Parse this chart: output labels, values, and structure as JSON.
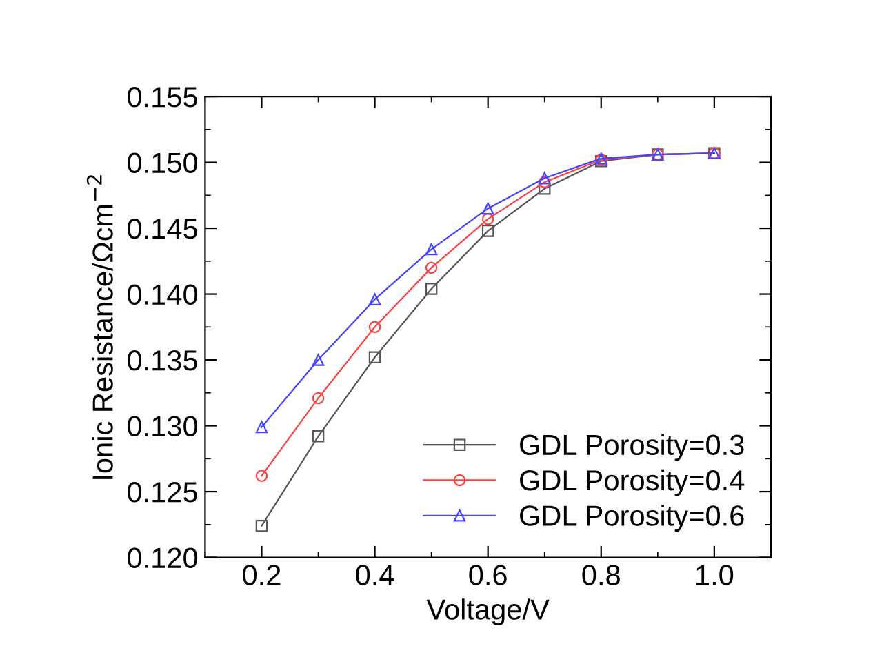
{
  "chart_data": {
    "type": "line",
    "xlabel": "Voltage/V",
    "ylabel": "Ionic Resistance/Ωcm$^{−2}$",
    "x": [
      0.2,
      0.3,
      0.4,
      0.5,
      0.6,
      0.7,
      0.8,
      0.9,
      1.0
    ],
    "series": [
      {
        "name": "GDL Porosity=0.3",
        "color": "#555555",
        "marker": "square",
        "values": [
          0.1224,
          0.1292,
          0.1352,
          0.1404,
          0.1448,
          0.148,
          0.1501,
          0.1506,
          0.1507
        ]
      },
      {
        "name": "GDL Porosity=0.4",
        "color": "#ff4040",
        "marker": "circle",
        "values": [
          0.1262,
          0.1321,
          0.1375,
          0.142,
          0.1457,
          0.1485,
          0.1502,
          0.1506,
          0.1507
        ]
      },
      {
        "name": "GDL Porosity=0.6",
        "color": "#4444ff",
        "marker": "triangle",
        "values": [
          0.1299,
          0.135,
          0.1396,
          0.1434,
          0.1465,
          0.1488,
          0.1503,
          0.1506,
          0.1507
        ]
      }
    ],
    "xlim": [
      0.1,
      1.1
    ],
    "xticks": [
      0.2,
      0.4,
      0.6,
      0.8,
      {
        "value": 1,
        "label": "1.0"
      }
    ],
    "ylim": [
      0.12,
      0.155
    ],
    "yticks": [
      {
        "value": 0.12,
        "label": "0.120"
      },
      0.125,
      {
        "value": 0.13,
        "label": "0.130"
      },
      0.135,
      {
        "value": 0.14,
        "label": "0.140"
      },
      0.145,
      {
        "value": 0.15,
        "label": "0.150"
      },
      0.155
    ],
    "grid": false,
    "legend": "bottom right",
    "line_style": "solid"
  }
}
